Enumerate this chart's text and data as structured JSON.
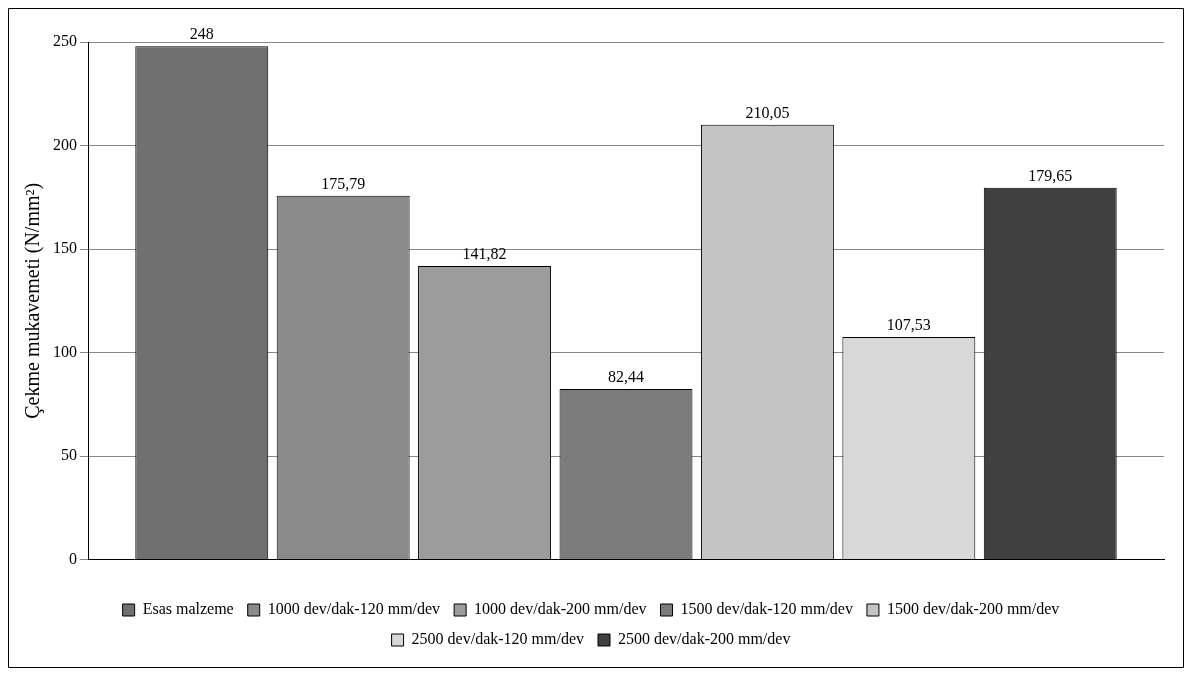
{
  "chart_data": {
    "type": "bar",
    "ylabel": "Çekme mukavemeti (N/mm²)",
    "categories": [
      null
    ],
    "series": [
      {
        "name": "Esas malzeme",
        "color": "#707070",
        "values": [
          248
        ],
        "value_labels": [
          "248"
        ]
      },
      {
        "name": "1000 dev/dak-120 mm/dev",
        "color": "#8a8a8a",
        "values": [
          175.79
        ],
        "value_labels": [
          "175,79"
        ]
      },
      {
        "name": "1000 dev/dak-200 mm/dev",
        "color": "#9c9c9c",
        "values": [
          141.82
        ],
        "value_labels": [
          "141,82"
        ]
      },
      {
        "name": "1500 dev/dak-120 mm/dev",
        "color": "#7c7c7c",
        "values": [
          82.44
        ],
        "value_labels": [
          "82,44"
        ]
      },
      {
        "name": "1500 dev/dak-200 mm/dev",
        "color": "#c4c4c4",
        "values": [
          210.05
        ],
        "value_labels": [
          "210,05"
        ]
      },
      {
        "name": "2500 dev/dak-120 mm/dev",
        "color": "#d8d8d8",
        "values": [
          107.53
        ],
        "value_labels": [
          "107,53"
        ]
      },
      {
        "name": "2500 dev/dak-200 mm/dev",
        "color": "#404040",
        "values": [
          179.65
        ],
        "value_labels": [
          "179,65"
        ]
      }
    ],
    "ylim": [
      0,
      250
    ],
    "yticks": [
      0,
      50,
      100,
      150,
      200,
      250
    ],
    "grid": "y",
    "legend": "bottom"
  }
}
